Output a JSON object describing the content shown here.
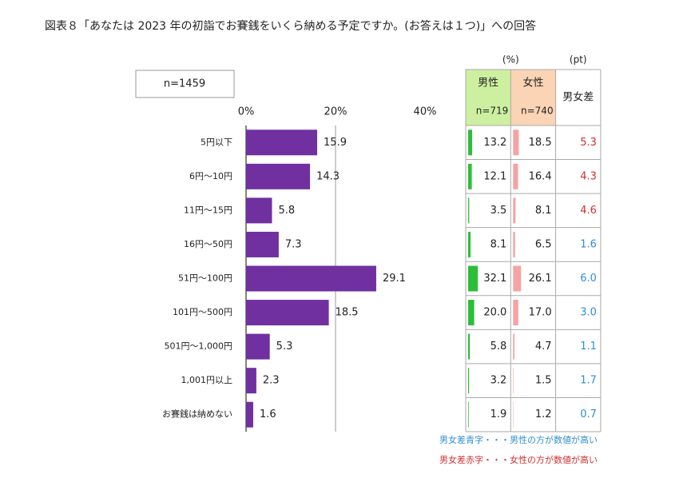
{
  "chart_data": {
    "type": "bar",
    "orientation": "horizontal",
    "title": "図表８「あなたは 2023 年の初詣でお賽銭をいくら納める予定ですか。(お答えは１つ)」への回答",
    "annotation": "n=1459",
    "categories": [
      "5円以下",
      "6円～10円",
      "11円～15円",
      "16円～50円",
      "51円～100円",
      "101円～500円",
      "501円～1,000円",
      "1,001円以上",
      "お賽銭は納めない"
    ],
    "values": [
      15.9,
      14.3,
      5.8,
      7.3,
      29.1,
      18.5,
      5.3,
      2.3,
      1.6
    ],
    "color": "#7030a0",
    "xlim": [
      0,
      40
    ],
    "xticks": [
      {
        "value": 0,
        "label": "0%"
      },
      {
        "value": 20,
        "label": "20%"
      },
      {
        "value": 40,
        "label": "40%"
      }
    ],
    "grid": true
  },
  "table": {
    "unit_left": "(%)",
    "unit_right": "(pt)",
    "columns": [
      {
        "name": "男性",
        "n": "n=719",
        "color": "#2ebd3a",
        "header_color": "#ccf0a0",
        "values": [
          13.2,
          12.1,
          3.5,
          8.1,
          32.1,
          20.0,
          5.8,
          3.2,
          1.9
        ],
        "value_labels": [
          "13.2",
          "12.1",
          "3.5",
          "8.1",
          "32.1",
          "20.0",
          "5.8",
          "3.2",
          "1.9"
        ]
      },
      {
        "name": "女性",
        "n": "n=740",
        "color": "#f5a3a3",
        "header_color": "#fbd3b5",
        "values": [
          18.5,
          16.4,
          8.1,
          6.5,
          26.1,
          17.0,
          4.7,
          1.5,
          1.2
        ],
        "value_labels": [
          "18.5",
          "16.4",
          "8.1",
          "6.5",
          "26.1",
          "17.0",
          "4.7",
          "1.5",
          "1.2"
        ]
      }
    ],
    "diff": {
      "name": "男女差",
      "values": [
        5.3,
        4.3,
        4.6,
        1.6,
        6.0,
        3.0,
        1.1,
        1.7,
        0.7
      ],
      "value_labels": [
        "5.3",
        "4.3",
        "4.6",
        "1.6",
        "6.0",
        "3.0",
        "1.1",
        "1.7",
        "0.7"
      ]
    },
    "notes": [
      {
        "text": "男女差青字・・・男性の方が数値が高い",
        "color": "#2f8fd0"
      },
      {
        "text": "男女差赤字・・・女性の方が数値が高い",
        "color": "#d03030"
      }
    ]
  }
}
